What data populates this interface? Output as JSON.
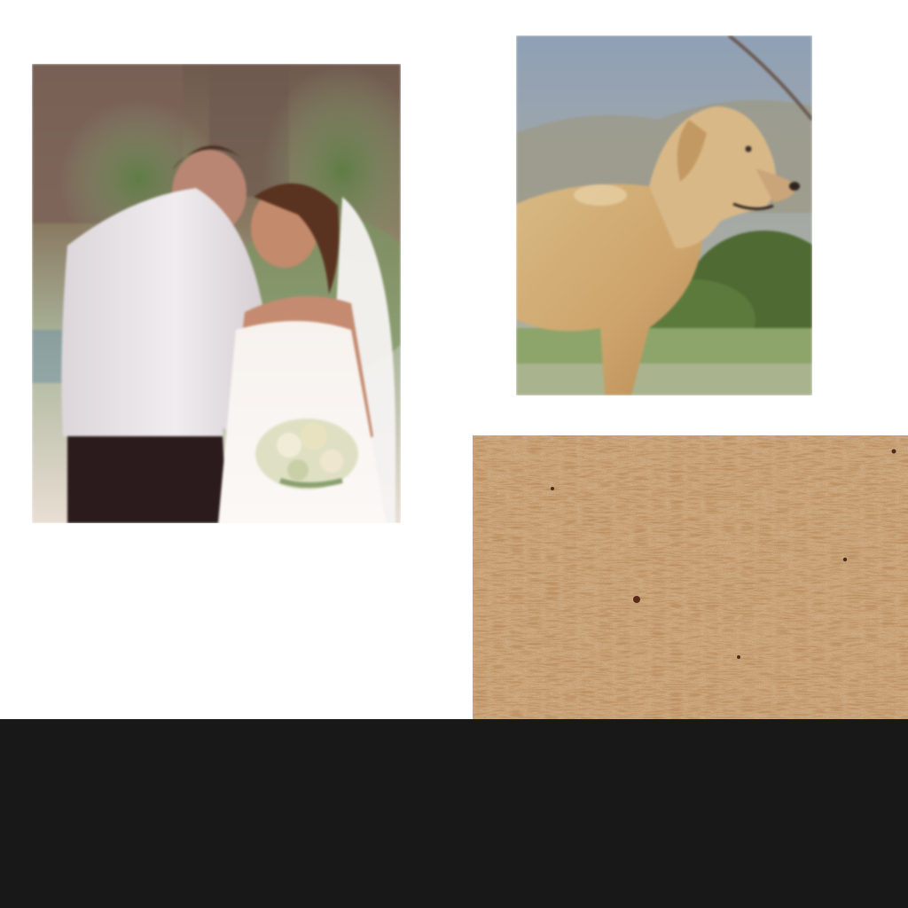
{
  "canvas": {
    "background_color": "#ffffff"
  },
  "images": [
    {
      "name": "wedding-couple-photo",
      "kind": "photograph"
    },
    {
      "name": "labrador-dog-photo",
      "kind": "photograph"
    },
    {
      "name": "cork-board-texture",
      "kind": "texture"
    }
  ],
  "colors": {
    "bottom_bar": "#181818",
    "cork": "#c08d5a"
  }
}
